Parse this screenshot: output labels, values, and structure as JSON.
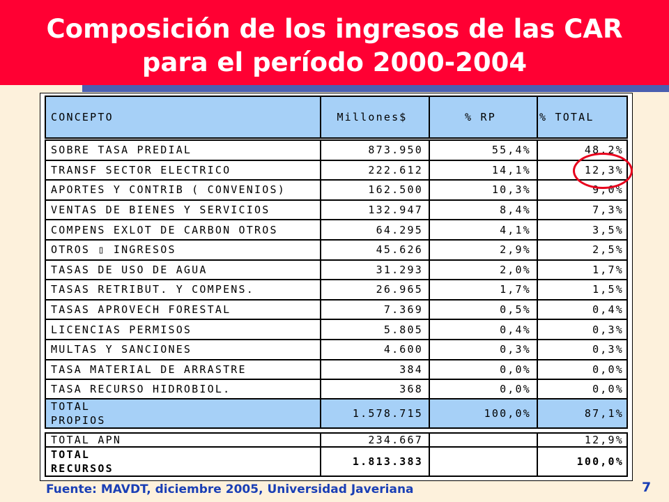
{
  "title": {
    "line1": "Composición de los ingresos de las CAR",
    "line2": "para el período 2000-2004"
  },
  "table": {
    "headers": [
      "CONCEPTO",
      "Millones$",
      "% RP",
      "% TOTAL"
    ],
    "rows": [
      [
        "SOBRE TASA PREDIAL",
        "873.950",
        "55,4%",
        "48,2%"
      ],
      [
        "TRANSF SECTOR ELECTRICO",
        "222.612",
        "14,1%",
        "12,3%"
      ],
      [
        "APORTES Y CONTRIB ( CONVENIOS)",
        "162.500",
        "10,3%",
        "9,0%"
      ],
      [
        "VENTAS DE BIENES Y SERVICIOS",
        "132.947",
        "8,4%",
        "7,3%"
      ],
      [
        "COMPENS EXLOT DE CARBON OTROS",
        "64.295",
        "4,1%",
        "3,5%"
      ],
      [
        "OTROS ▯ INGRESOS",
        "45.626",
        "2,9%",
        "2,5%"
      ],
      [
        "TASAS DE USO DE AGUA",
        "31.293",
        "2,0%",
        "1,7%"
      ],
      [
        "TASAS RETRIBUT. Y COMPENS.",
        "26.965",
        "1,7%",
        "1,5%"
      ],
      [
        "TASAS APROVECH FORESTAL",
        "7.369",
        "0,5%",
        "0,4%"
      ],
      [
        "LICENCIAS PERMISOS",
        "5.805",
        "0,4%",
        "0,3%"
      ],
      [
        "MULTAS Y SANCIONES",
        "4.600",
        "0,3%",
        "0,3%"
      ],
      [
        "TASA MATERIAL DE ARRASTRE",
        "384",
        "0,0%",
        "0,0%"
      ],
      [
        "TASA RECURSO HIDROBIOL.",
        "368",
        "0,0%",
        "0,0%"
      ]
    ],
    "total_propios": [
      "TOTAL\nPROPIOS",
      "1.578.715",
      "100,0%",
      "87,1%"
    ],
    "total_apn": [
      "TOTAL APN",
      "234.667",
      "",
      "12,9%"
    ],
    "total_recursos": [
      "TOTAL\nRECURSOS",
      "1.813.383",
      "",
      "100,0%"
    ]
  },
  "source": "Fuente: MAVDT, diciembre 2005, Universidad Javeriana",
  "page_number": "7",
  "colors": {
    "banner": "#ff0033",
    "banner_shadow": "#4a5fb0",
    "highlight_row": "#a6d0f7",
    "background": "#fdf1dc",
    "circle": "#e8001c",
    "source_text": "#1a3fb5"
  }
}
